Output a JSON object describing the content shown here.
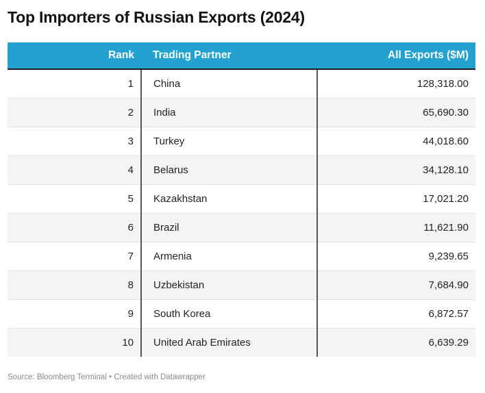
{
  "chart_data": {
    "type": "table",
    "title": "Top Importers of Russian Exports (2024)",
    "columns": [
      "Rank",
      "Trading Partner",
      "All Exports ($M)"
    ],
    "rows": [
      {
        "rank": "1",
        "partner": "China",
        "value": "128,318.00"
      },
      {
        "rank": "2",
        "partner": "India",
        "value": "65,690.30"
      },
      {
        "rank": "3",
        "partner": "Turkey",
        "value": "44,018.60"
      },
      {
        "rank": "4",
        "partner": "Belarus",
        "value": "34,128.10"
      },
      {
        "rank": "5",
        "partner": "Kazakhstan",
        "value": "17,021.20"
      },
      {
        "rank": "6",
        "partner": "Brazil",
        "value": "11,621.90"
      },
      {
        "rank": "7",
        "partner": "Armenia",
        "value": "9,239.65"
      },
      {
        "rank": "8",
        "partner": "Uzbekistan",
        "value": "7,684.90"
      },
      {
        "rank": "9",
        "partner": "South Korea",
        "value": "6,872.57"
      },
      {
        "rank": "10",
        "partner": "United Arab Emirates",
        "value": "6,639.29"
      }
    ],
    "header_color": "#24a2cf",
    "stripe_color": "#f4f4f4"
  },
  "footer": {
    "source": "Source: Bloomberg Terminal • Created with Datawrapper"
  }
}
